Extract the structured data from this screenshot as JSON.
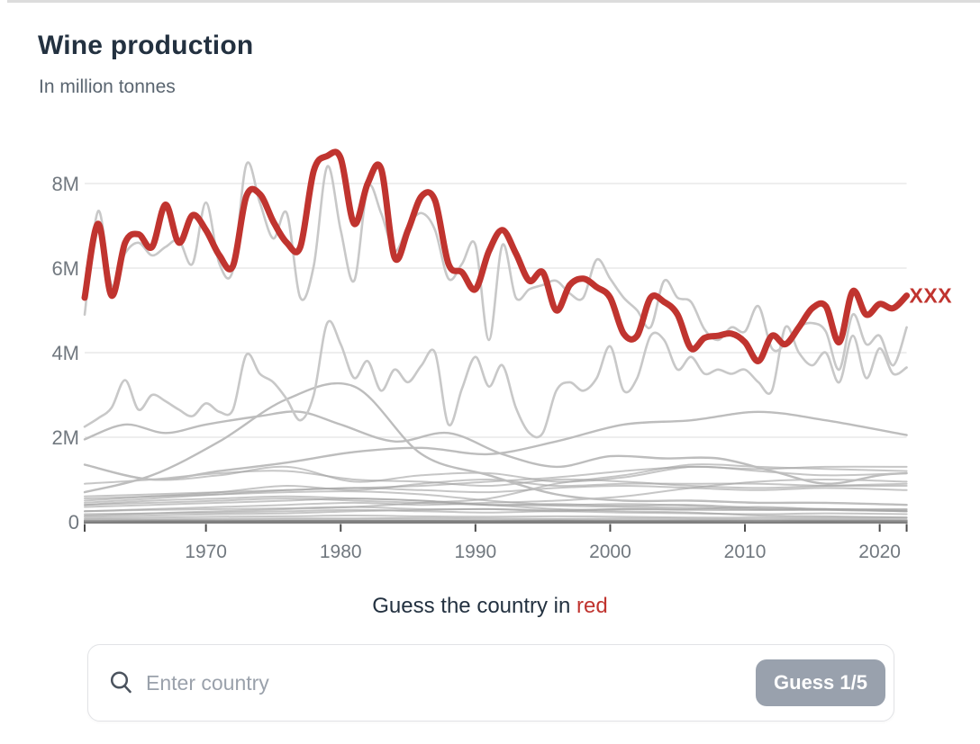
{
  "page": {
    "title": "Wine production",
    "subtitle": "In million tonnes"
  },
  "prompt": {
    "prefix": "Guess the country in",
    "highlight": "red"
  },
  "search": {
    "placeholder": "Enter country",
    "value": "",
    "button_label": "Guess 1/5",
    "icon": "magnifier-icon"
  },
  "colors": {
    "accent_red": "#c0342f",
    "title_text": "#233140",
    "subtitle_text": "#5a6570",
    "axis_text": "#71787f",
    "gridline": "#e4e4e4",
    "axis_line": "#7e7e7e",
    "tick": "#4c4c4c",
    "gray_light": "#c8c8c8",
    "gray_mid": "#bdbdbd",
    "gray_minor": "#a3a3a3",
    "button_bg": "#99a1ad",
    "button_text": "#ffffff",
    "placeholder_text": "#9aa1ab",
    "card_border": "#e2e3e6"
  },
  "chart_data": {
    "type": "line",
    "title": "Wine production",
    "subtitle": "In million tonnes",
    "unit": "million tonnes",
    "x_range": [
      1961,
      2022
    ],
    "ylim": [
      0,
      9
    ],
    "grid": "horizontal",
    "legend_position": "none",
    "y_ticks": [
      {
        "label": "8M",
        "value": 8
      },
      {
        "label": "6M",
        "value": 6
      },
      {
        "label": "4M",
        "value": 4
      },
      {
        "label": "2M",
        "value": 2
      },
      {
        "label": "0",
        "value": 0
      }
    ],
    "x_ticks": [
      1970,
      1980,
      1990,
      2000,
      2010,
      2020
    ],
    "highlight": {
      "name": "hidden-country",
      "label": "XXX",
      "x_start": 1961,
      "values": [
        5.3,
        7.05,
        5.35,
        6.6,
        6.8,
        6.5,
        7.5,
        6.6,
        7.25,
        6.9,
        6.3,
        6.05,
        7.7,
        7.75,
        7.1,
        6.6,
        6.5,
        8.3,
        8.65,
        8.6,
        7.05,
        8.0,
        8.35,
        6.25,
        6.9,
        7.7,
        7.6,
        6.1,
        5.9,
        5.5,
        6.4,
        6.9,
        6.35,
        5.7,
        5.9,
        5.0,
        5.6,
        5.75,
        5.55,
        5.3,
        4.45,
        4.4,
        5.3,
        5.2,
        4.9,
        4.1,
        4.35,
        4.4,
        4.45,
        4.25,
        3.8,
        4.4,
        4.2,
        4.6,
        5.05,
        5.1,
        4.25,
        5.45,
        4.9,
        5.15,
        5.05,
        5.35
      ]
    },
    "others": [
      {
        "name": "background-1",
        "tier": "light",
        "x_start": 1961,
        "values": [
          4.9,
          7.35,
          5.6,
          6.35,
          6.6,
          6.3,
          6.5,
          6.65,
          6.1,
          7.55,
          6.1,
          5.95,
          8.45,
          7.55,
          6.7,
          7.3,
          5.3,
          6.05,
          8.4,
          6.9,
          5.7,
          7.9,
          7.3,
          6.4,
          7.0,
          7.3,
          6.9,
          5.75,
          6.1,
          6.55,
          4.3,
          6.55,
          5.3,
          5.5,
          5.6,
          5.7,
          5.4,
          5.3,
          6.2,
          5.75,
          5.3,
          5.0,
          4.6,
          5.7,
          5.3,
          5.2,
          4.55,
          4.3,
          4.6,
          4.5,
          5.1,
          4.1,
          4.2,
          4.6,
          4.7,
          4.5,
          3.6,
          4.9,
          4.2,
          4.4,
          3.7,
          4.6
        ]
      },
      {
        "name": "background-2",
        "tier": "light",
        "x_start": 1961,
        "values": [
          2.25,
          2.45,
          2.7,
          3.35,
          2.65,
          3.0,
          2.85,
          2.65,
          2.5,
          2.8,
          2.6,
          2.65,
          3.95,
          3.5,
          3.3,
          2.9,
          2.4,
          3.0,
          4.7,
          4.2,
          3.4,
          3.8,
          3.1,
          3.6,
          3.3,
          3.7,
          4.0,
          2.3,
          3.15,
          3.9,
          3.2,
          3.7,
          2.7,
          2.1,
          2.1,
          3.1,
          3.3,
          3.1,
          3.4,
          4.15,
          3.1,
          3.4,
          4.4,
          4.3,
          3.6,
          3.9,
          3.5,
          3.6,
          3.5,
          3.6,
          3.3,
          3.1,
          4.6,
          4.0,
          3.7,
          4.0,
          3.3,
          4.4,
          3.4,
          4.1,
          3.5,
          3.65
        ]
      },
      {
        "name": "background-3",
        "tier": "mid",
        "x": [
          1961,
          1966,
          1971,
          1976,
          1981,
          1986,
          1991,
          1996,
          2001,
          2006,
          2011,
          2016,
          2022
        ],
        "values": [
          1.35,
          1.0,
          1.2,
          1.4,
          1.65,
          1.75,
          1.6,
          1.9,
          2.3,
          2.4,
          2.6,
          2.4,
          2.05
        ]
      },
      {
        "name": "background-4",
        "tier": "mid",
        "x": [
          1961,
          1964,
          1967,
          1970,
          1974,
          1977,
          1980,
          1984,
          1988,
          1992,
          1996,
          2000,
          2004,
          2008,
          2012,
          2016,
          2020,
          2022
        ],
        "values": [
          1.95,
          2.3,
          2.1,
          2.3,
          2.5,
          2.6,
          2.3,
          1.9,
          2.1,
          1.6,
          1.3,
          1.55,
          1.5,
          1.5,
          1.2,
          0.9,
          1.1,
          1.15
        ]
      },
      {
        "name": "background-5",
        "tier": "mid",
        "x": [
          1961,
          1966,
          1971,
          1976,
          1981,
          1986,
          1991,
          1996,
          2001,
          2006,
          2011,
          2016,
          2022
        ],
        "values": [
          0.7,
          1.1,
          1.9,
          2.9,
          3.2,
          1.6,
          1.1,
          0.65,
          0.5,
          0.5,
          0.45,
          0.45,
          0.4
        ]
      },
      {
        "name": "background-6",
        "tier": "minor",
        "x": [
          1961,
          1966,
          1971,
          1976,
          1981,
          1986,
          1991,
          1996,
          2001,
          2006,
          2011,
          2016,
          2022
        ],
        "values": [
          1.35,
          1.0,
          1.1,
          1.3,
          0.95,
          1.1,
          1.15,
          0.95,
          1.05,
          1.3,
          1.2,
          1.1,
          1.15
        ]
      },
      {
        "name": "background-7",
        "tier": "minor",
        "x": [
          1961,
          1966,
          1971,
          1976,
          1981,
          1986,
          1991,
          1996,
          2001,
          2006,
          2011,
          2016,
          2022
        ],
        "values": [
          0.9,
          1.0,
          1.15,
          1.2,
          1.0,
          0.95,
          0.85,
          1.0,
          0.95,
          0.85,
          0.8,
          0.85,
          0.9
        ]
      },
      {
        "name": "background-8",
        "tier": "minor",
        "x": [
          1961,
          1966,
          1971,
          1976,
          1981,
          1986,
          1991,
          1996,
          2001,
          2006,
          2011,
          2016,
          2022
        ],
        "values": [
          0.15,
          0.2,
          0.25,
          0.3,
          0.35,
          0.45,
          0.55,
          0.9,
          1.1,
          1.35,
          1.3,
          1.25,
          1.2
        ]
      },
      {
        "name": "background-9",
        "tier": "minor",
        "x": [
          1961,
          1966,
          1971,
          1976,
          1981,
          1986,
          1991,
          1996,
          2001,
          2006,
          2011,
          2016,
          2022
        ],
        "values": [
          0.45,
          0.55,
          0.65,
          0.75,
          0.8,
          0.85,
          0.95,
          1.05,
          1.2,
          1.3,
          1.25,
          1.3,
          1.3
        ]
      },
      {
        "name": "background-10",
        "tier": "minor",
        "x": [
          1961,
          1966,
          1971,
          1976,
          1981,
          1986,
          1991,
          1996,
          2001,
          2006,
          2011,
          2016,
          2022
        ],
        "values": [
          0.6,
          0.65,
          0.7,
          0.75,
          0.8,
          0.75,
          0.7,
          0.8,
          0.85,
          0.8,
          0.75,
          0.8,
          0.75
        ]
      },
      {
        "name": "background-11",
        "tier": "minor",
        "x": [
          1961,
          1966,
          1971,
          1976,
          1981,
          1986,
          1991,
          1996,
          2001,
          2006,
          2011,
          2016,
          2022
        ],
        "values": [
          0.25,
          0.3,
          0.35,
          0.4,
          0.45,
          0.4,
          0.45,
          0.5,
          0.6,
          0.8,
          0.95,
          1.0,
          0.95
        ]
      },
      {
        "name": "background-12",
        "tier": "minor",
        "x": [
          1961,
          1966,
          1971,
          1976,
          1981,
          1986,
          1991,
          1996,
          2001,
          2006,
          2011,
          2016,
          2022
        ],
        "values": [
          0.5,
          0.6,
          0.7,
          0.85,
          0.75,
          0.9,
          1.0,
          0.85,
          0.9,
          0.9,
          0.9,
          0.85,
          0.85
        ]
      },
      {
        "name": "background-13",
        "tier": "minor",
        "x": [
          1961,
          1966,
          1971,
          1976,
          1981,
          1986,
          1991,
          1996,
          2001,
          2006,
          2011,
          2016,
          2022
        ],
        "values": [
          0.4,
          0.45,
          0.5,
          0.55,
          0.5,
          0.45,
          0.4,
          0.38,
          0.35,
          0.33,
          0.28,
          0.28,
          0.25
        ]
      },
      {
        "name": "background-14",
        "tier": "minor",
        "x": [
          1961,
          1966,
          1971,
          1976,
          1981,
          1986,
          1991,
          1996,
          2001,
          2006,
          2011,
          2016,
          2022
        ],
        "values": [
          0.35,
          0.4,
          0.45,
          0.5,
          0.55,
          0.5,
          0.4,
          0.42,
          0.38,
          0.4,
          0.33,
          0.3,
          0.28
        ]
      },
      {
        "name": "background-15",
        "tier": "minor",
        "x": [
          1961,
          1966,
          1971,
          1976,
          1981,
          1986,
          1991,
          1996,
          2001,
          2006,
          2011,
          2016,
          2022
        ],
        "values": [
          0.4,
          0.5,
          0.55,
          0.6,
          0.55,
          0.5,
          0.4,
          0.3,
          0.25,
          0.22,
          0.15,
          0.13,
          0.1
        ]
      },
      {
        "name": "background-16",
        "tier": "minor",
        "x": [
          1961,
          1966,
          1971,
          1976,
          1981,
          1986,
          1991,
          1996,
          2001,
          2006,
          2011,
          2016,
          2022
        ],
        "values": [
          0.55,
          0.6,
          0.65,
          0.7,
          0.72,
          0.65,
          0.5,
          0.4,
          0.42,
          0.38,
          0.3,
          0.28,
          0.25
        ]
      },
      {
        "name": "background-17",
        "tier": "minor",
        "x": [
          1961,
          1966,
          1971,
          1976,
          1981,
          1986,
          1991,
          1996,
          2001,
          2006,
          2011,
          2016,
          2022
        ],
        "values": [
          0.25,
          0.28,
          0.3,
          0.32,
          0.35,
          0.3,
          0.3,
          0.28,
          0.3,
          0.28,
          0.28,
          0.3,
          0.25
        ]
      },
      {
        "name": "background-18",
        "tier": "minor",
        "x": [
          1961,
          1966,
          1971,
          1976,
          1981,
          1986,
          1991,
          1996,
          2001,
          2006,
          2011,
          2016,
          2022
        ],
        "values": [
          0.18,
          0.2,
          0.22,
          0.25,
          0.28,
          0.25,
          0.22,
          0.25,
          0.22,
          0.2,
          0.18,
          0.2,
          0.18
        ]
      },
      {
        "name": "background-19",
        "tier": "minor",
        "x": [
          1961,
          1966,
          1971,
          1976,
          1981,
          1986,
          1991,
          1996,
          2001,
          2006,
          2011,
          2016,
          2022
        ],
        "values": [
          0.12,
          0.15,
          0.18,
          0.2,
          0.25,
          0.28,
          0.3,
          0.25,
          0.3,
          0.3,
          0.35,
          0.3,
          0.3
        ]
      },
      {
        "name": "background-20",
        "tier": "minor",
        "x": [
          1961,
          1966,
          1971,
          1976,
          1981,
          1986,
          1991,
          1996,
          2001,
          2006,
          2011,
          2016,
          2022
        ],
        "values": [
          0.08,
          0.1,
          0.12,
          0.13,
          0.15,
          0.13,
          0.12,
          0.13,
          0.12,
          0.1,
          0.1,
          0.1,
          0.1
        ]
      },
      {
        "name": "background-21",
        "tier": "minor",
        "x": [
          1961,
          1966,
          1971,
          1976,
          1981,
          1986,
          1991,
          1996,
          2001,
          2006,
          2011,
          2016,
          2022
        ],
        "values": [
          0.05,
          0.06,
          0.07,
          0.08,
          0.08,
          0.09,
          0.08,
          0.07,
          0.08,
          0.07,
          0.06,
          0.07,
          0.06
        ]
      },
      {
        "name": "background-22",
        "tier": "minor",
        "x": [
          1961,
          1966,
          1971,
          1976,
          1981,
          1986,
          1991,
          1996,
          2001,
          2006,
          2011,
          2016,
          2022
        ],
        "values": [
          0.03,
          0.04,
          0.04,
          0.05,
          0.05,
          0.05,
          0.04,
          0.05,
          0.04,
          0.04,
          0.03,
          0.04,
          0.03
        ]
      }
    ]
  }
}
